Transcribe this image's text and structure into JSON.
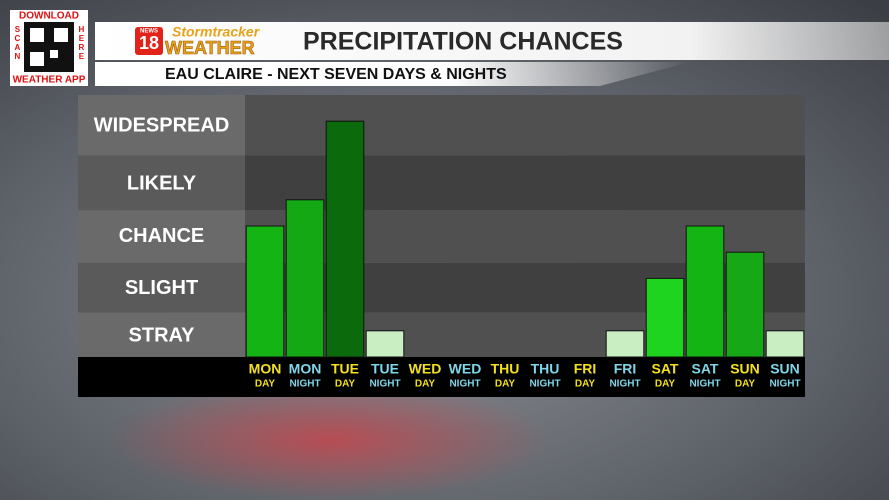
{
  "badge": {
    "top": "DOWNLOAD",
    "left": "SCAN",
    "right": "HERE",
    "bottom": "WEATHER APP"
  },
  "logo": {
    "news": "NEWS",
    "number": "18",
    "brand": "Stormtracker",
    "word": "WEATHER"
  },
  "chart_data": {
    "type": "bar",
    "title": "PRECIPITATION CHANCES",
    "subtitle": "EAU CLAIRE - NEXT SEVEN DAYS & NIGHTS",
    "categories": [
      "MON",
      "MON",
      "TUE",
      "TUE",
      "WED",
      "WED",
      "THU",
      "THU",
      "FRI",
      "FRI",
      "SAT",
      "SAT",
      "SUN",
      "SUN"
    ],
    "category_sublabels": [
      "DAY",
      "NIGHT",
      "DAY",
      "NIGHT",
      "DAY",
      "NIGHT",
      "DAY",
      "NIGHT",
      "DAY",
      "NIGHT",
      "DAY",
      "NIGHT",
      "DAY",
      "NIGHT"
    ],
    "label_colors": [
      "#f4e01c",
      "#7fd6ea",
      "#f4e01c",
      "#7fd6ea",
      "#f4e01c",
      "#7fd6ea",
      "#f4e01c",
      "#7fd6ea",
      "#f4e01c",
      "#7fd6ea",
      "#f4e01c",
      "#7fd6ea",
      "#f4e01c",
      "#7fd6ea"
    ],
    "values": [
      2.5,
      3.0,
      4.5,
      0.5,
      0,
      0,
      0,
      0,
      0,
      0.5,
      1.5,
      2.5,
      2.0,
      0.5
    ],
    "colors": [
      "#14b414",
      "#14a814",
      "#0b6a0b",
      "#c8eec2",
      "#c8eec2",
      "#c8eec2",
      "#c8eec2",
      "#c8eec2",
      "#c8eec2",
      "#c8eec2",
      "#1ed41e",
      "#14b414",
      "#16a816",
      "#c8eec2"
    ],
    "ylim": [
      0,
      5
    ],
    "yticks": [
      {
        "value": 0.4,
        "label": "STRAY"
      },
      {
        "value": 1.3,
        "label": "SLIGHT"
      },
      {
        "value": 2.3,
        "label": "CHANCE"
      },
      {
        "value": 3.3,
        "label": "LIKELY"
      },
      {
        "value": 4.4,
        "label": "WIDESPREAD"
      }
    ]
  }
}
